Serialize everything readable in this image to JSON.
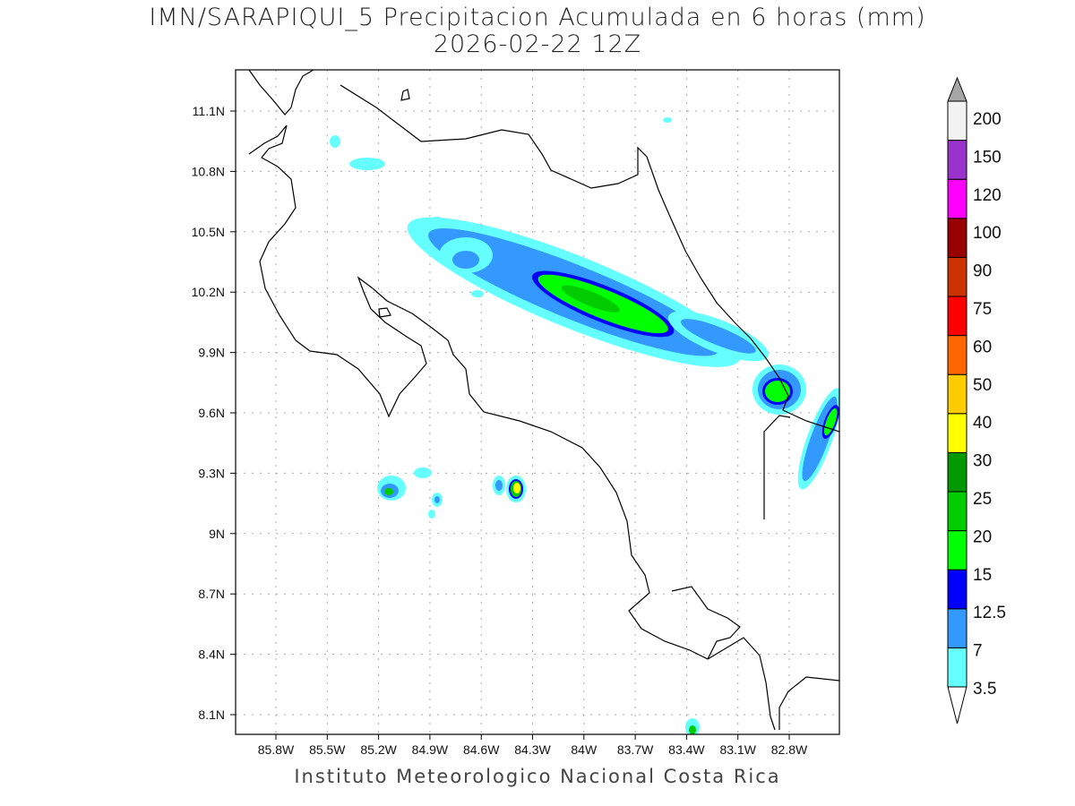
{
  "title": {
    "line1": "IMN/SARAPIQUI_5 Precipitacion Acumulada en 6 horas (mm)",
    "line2": "2026-02-22 12Z"
  },
  "footer": "Instituto Meteorologico Nacional Costa Rica",
  "map": {
    "lon_ticks": [
      "85.8W",
      "85.5W",
      "85.2W",
      "84.9W",
      "84.6W",
      "84.3W",
      "84W",
      "83.7W",
      "83.4W",
      "83.1W",
      "82.8W"
    ],
    "lat_ticks": [
      "11.1N",
      "10.8N",
      "10.5N",
      "10.2N",
      "9.9N",
      "9.6N",
      "9.3N",
      "9N",
      "8.7N",
      "8.4N",
      "8.1N"
    ],
    "grid": "dotted",
    "coastline_color": "#000000"
  },
  "colorbar": {
    "levels": [
      "3.5",
      "7",
      "12.5",
      "15",
      "20",
      "25",
      "30",
      "40",
      "50",
      "60",
      "75",
      "90",
      "100",
      "120",
      "150",
      "200"
    ],
    "colors": [
      "#66ffff",
      "#3399ff",
      "#0000ff",
      "#00ff00",
      "#00cc00",
      "#009900",
      "#ffff00",
      "#ffcc00",
      "#ff6600",
      "#ff0000",
      "#cc3300",
      "#990000",
      "#ff00ff",
      "#9933cc",
      "#f2f2f2"
    ],
    "over_color": "#a6a6a6",
    "under_color": "#ffffff"
  }
}
